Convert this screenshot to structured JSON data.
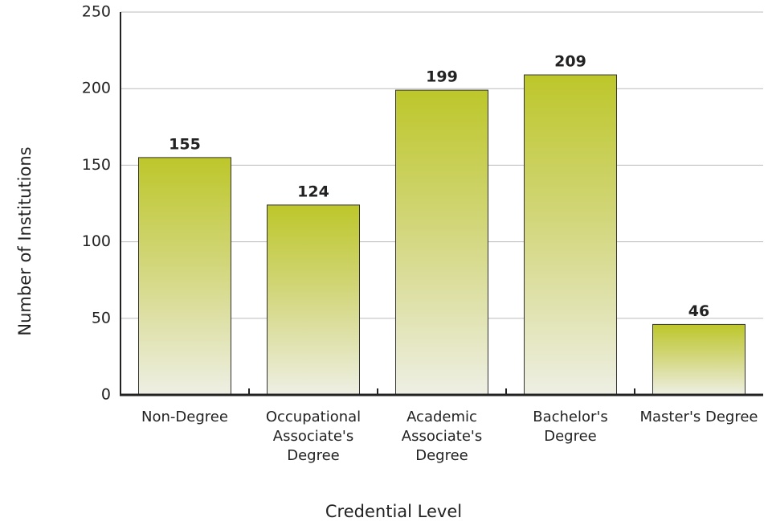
{
  "chart_data": {
    "type": "bar",
    "categories": [
      "Non-Degree",
      "Occupational Associate's Degree",
      "Academic Associate's Degree",
      "Bachelor's Degree",
      "Master's Degree"
    ],
    "values": [
      155,
      124,
      199,
      209,
      46
    ],
    "color": "#bdc72a",
    "xlabel": "Credential Level",
    "ylabel": "Number of Institutions",
    "ylim": [
      0,
      250
    ],
    "yticks": [
      0,
      50,
      100,
      150,
      200,
      250
    ],
    "grid": true
  }
}
